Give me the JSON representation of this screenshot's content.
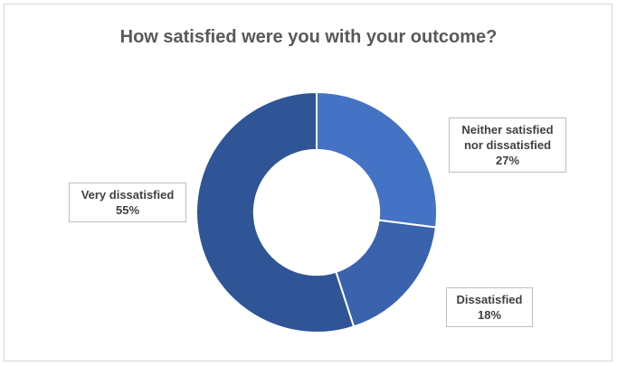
{
  "chart_data": {
    "type": "pie",
    "title": "How satisfied were you with your outcome?",
    "series": [
      {
        "label_lines": [
          "Neither satisfied",
          "nor dissatisfied"
        ],
        "value": 27,
        "value_label": "27%",
        "color": "#4472c4"
      },
      {
        "label_lines": [
          "Dissatisfied"
        ],
        "value": 18,
        "value_label": "18%",
        "color": "#3a62ad"
      },
      {
        "label_lines": [
          "Very dissatisfied"
        ],
        "value": 55,
        "value_label": "55%",
        "color": "#2f5597"
      }
    ],
    "hole_fraction": 0.52
  }
}
